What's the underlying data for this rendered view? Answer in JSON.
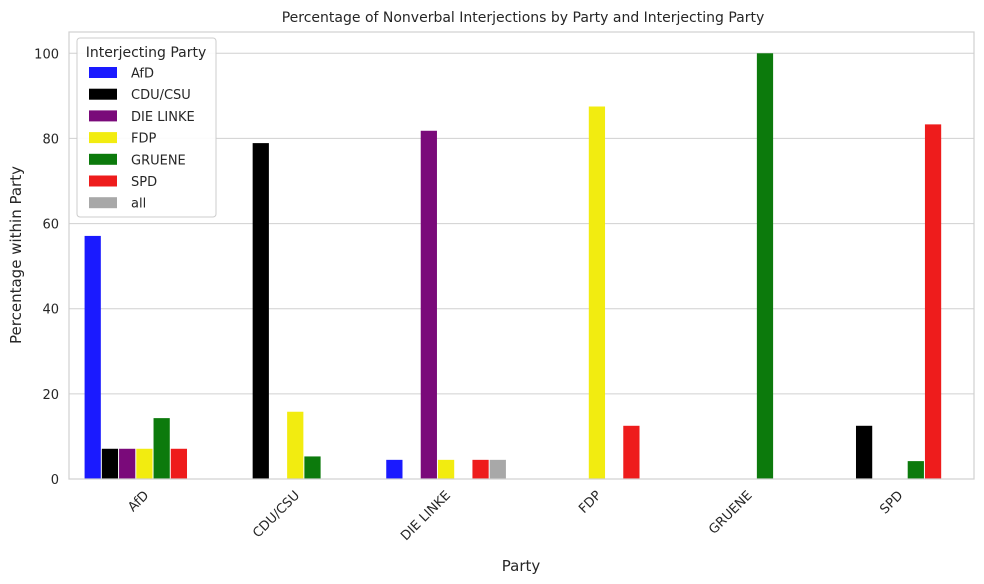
{
  "chart_data": {
    "type": "bar",
    "title": "Percentage of Nonverbal Interjections by Party and Interjecting Party",
    "xlabel": "Party",
    "ylabel": "Percentage within Party",
    "ylim": [
      0,
      105
    ],
    "yticks": [
      0,
      20,
      40,
      60,
      80,
      100
    ],
    "grid": true,
    "categories": [
      "AfD",
      "CDU/CSU",
      "DIE LINKE",
      "FDP",
      "GRUENE",
      "SPD"
    ],
    "legend": {
      "title": "Interjecting Party",
      "placement": "top-left"
    },
    "series": [
      {
        "name": "AfD",
        "color": "#1a1aff",
        "values": [
          57.1,
          null,
          4.5,
          null,
          null,
          null
        ]
      },
      {
        "name": "CDU/CSU",
        "color": "#000000",
        "values": [
          7.1,
          78.9,
          null,
          null,
          null,
          12.5
        ]
      },
      {
        "name": "DIE LINKE",
        "color": "#7a0a7a",
        "values": [
          7.1,
          null,
          81.8,
          null,
          null,
          null
        ]
      },
      {
        "name": "FDP",
        "color": "#f2ec10",
        "values": [
          7.1,
          15.8,
          4.5,
          87.5,
          null,
          null
        ]
      },
      {
        "name": "GRUENE",
        "color": "#0c7a0c",
        "values": [
          14.3,
          5.3,
          null,
          null,
          100.0,
          4.2
        ]
      },
      {
        "name": "SPD",
        "color": "#ee1c1c",
        "values": [
          7.1,
          null,
          4.5,
          12.5,
          null,
          83.3
        ]
      },
      {
        "name": "all",
        "color": "#a8a8a8",
        "values": [
          null,
          null,
          4.5,
          null,
          null,
          null
        ]
      }
    ]
  }
}
